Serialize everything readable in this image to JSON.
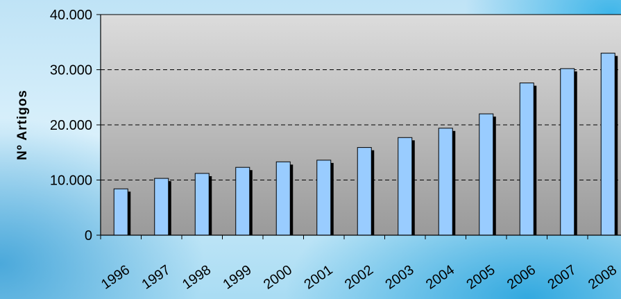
{
  "chart_data": {
    "type": "bar",
    "title": "",
    "xlabel": "",
    "ylabel": "Nº Artigos",
    "categories": [
      "1996",
      "1997",
      "1998",
      "1999",
      "2000",
      "2001",
      "2002",
      "2003",
      "2004",
      "2005",
      "2006",
      "2007",
      "2008"
    ],
    "values": [
      8400,
      10300,
      11200,
      12300,
      13300,
      13600,
      15900,
      17700,
      19400,
      22000,
      27600,
      30200,
      33000
    ],
    "ylim": [
      0,
      40000
    ],
    "yticks": [
      0,
      10000,
      20000,
      30000,
      40000
    ],
    "ytick_labels": [
      "0",
      "10.000",
      "20.000",
      "30.000",
      "40.000"
    ],
    "grid": "horizontal dashed",
    "legend": "none",
    "colors": {
      "bar": "#99ccff",
      "bar_shadow": "#000000",
      "plot_bg_top": "#dcdcdc",
      "plot_bg_bottom": "#9a9a9a"
    }
  }
}
